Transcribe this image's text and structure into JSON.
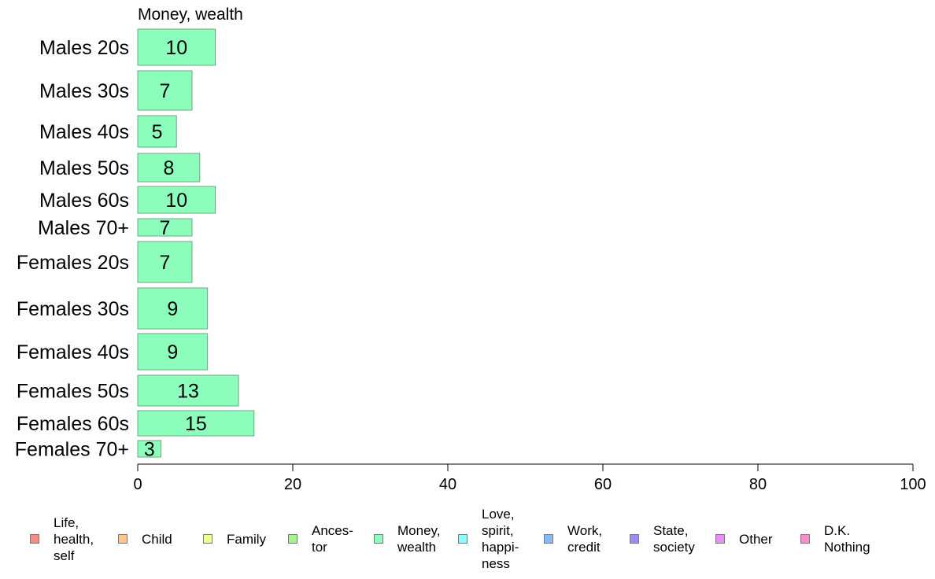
{
  "chart_data": {
    "type": "bar",
    "orientation": "horizontal",
    "title": "Money, wealth",
    "categories": [
      "Males 20s",
      "Males 30s",
      "Males 40s",
      "Males 50s",
      "Males 60s",
      "Males 70+",
      "Females 20s",
      "Females 30s",
      "Females 40s",
      "Females 50s",
      "Females 60s",
      "Females 70+"
    ],
    "values": [
      10,
      7,
      5,
      8,
      10,
      7,
      7,
      9,
      9,
      13,
      15,
      3
    ],
    "xlim": [
      0,
      100
    ],
    "xticks": [
      0,
      20,
      40,
      60,
      80,
      100
    ],
    "bar_color": "#8dffbd",
    "bar_border": "#6aa87f",
    "grid": false,
    "legend_position": "bottom",
    "legend": [
      {
        "label": "Life,\nhealth,\nself",
        "color": "#f78c87"
      },
      {
        "label": "Child",
        "color": "#ffc58a"
      },
      {
        "label": "Family",
        "color": "#f0ff8c"
      },
      {
        "label": "Ances-\ntor",
        "color": "#a5f58a"
      },
      {
        "label": "Money,\nwealth",
        "color": "#8dffbd"
      },
      {
        "label": "Love,\nspirit,\nhappi-\nness",
        "color": "#8cfdfd"
      },
      {
        "label": "Work,\ncredit",
        "color": "#8ab8f7"
      },
      {
        "label": "State,\nsociety",
        "color": "#9a8cf7"
      },
      {
        "label": "Other",
        "color": "#e88cf7"
      },
      {
        "label": "D.K.\nNothing",
        "color": "#fc8cd0"
      }
    ]
  }
}
